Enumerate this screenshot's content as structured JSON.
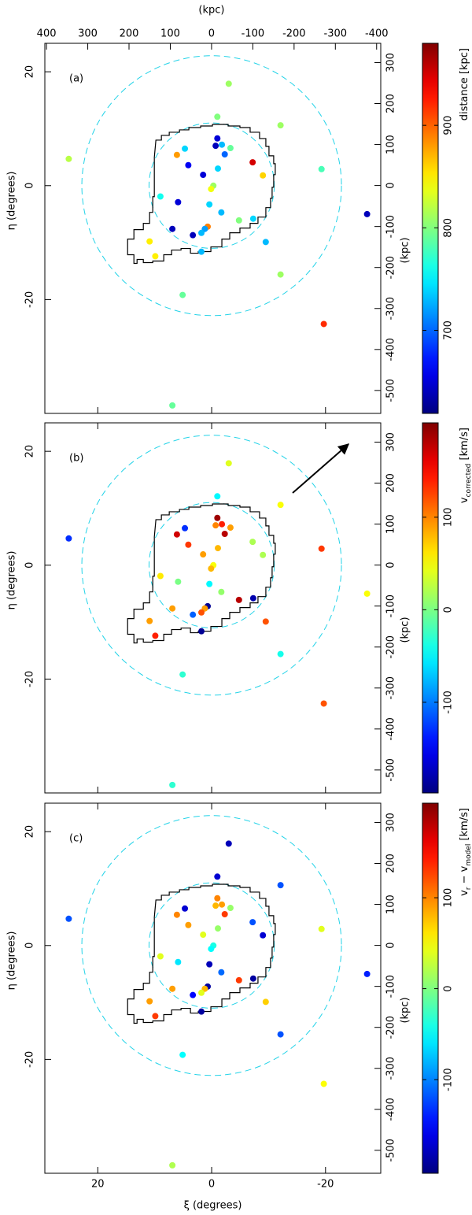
{
  "chart_data": [
    {
      "type": "scatter",
      "label": "(a)",
      "colormap": "jet",
      "xlim": [
        29.3,
        -29.7
      ],
      "xticks": [
        20,
        0,
        -20
      ],
      "ylim": [
        -40,
        25
      ],
      "yticks": [
        20,
        0,
        -20
      ],
      "ylabel": "η (degrees)",
      "x2lim": [
        404,
        -410
      ],
      "x2ticks": [
        400,
        300,
        200,
        100,
        0,
        -100,
        -200,
        -300,
        -400
      ],
      "x2label": "(kpc)",
      "y2lim": [
        -556,
        347
      ],
      "y2ticks": [
        300,
        200,
        100,
        0,
        -100,
        -200,
        -300,
        -400,
        -500
      ],
      "y2label": "(kpc)",
      "clim": [
        619,
        980
      ],
      "cticks": [
        700,
        800,
        900
      ],
      "clabel": [
        {
          "text": "distance [kpc]"
        }
      ],
      "x": [
        -3.0,
        -12.1,
        25.1,
        -19.3,
        -27.3,
        -1.0,
        -1.0,
        -0.7,
        -1.8,
        -3.3,
        4.7,
        6.1,
        -2.3,
        -7.2,
        4.1,
        -1.1,
        1.5,
        -9.0,
        -0.3,
        0.1,
        9.0,
        5.9,
        0.4,
        -1.7,
        -4.8,
        -7.3,
        0.7,
        1.2,
        6.9,
        1.8,
        3.3,
        10.9,
        -9.5,
        1.8,
        9.9,
        -12.1,
        5.1,
        -19.7,
        6.9
      ],
      "y": [
        17.9,
        10.6,
        4.7,
        2.9,
        -5.0,
        12.1,
        8.3,
        7.0,
        7.2,
        6.6,
        6.5,
        5.4,
        5.5,
        4.1,
        3.6,
        3.0,
        1.9,
        1.8,
        0.0,
        -0.6,
        -1.9,
        -2.9,
        -3.3,
        -4.7,
        -6.1,
        -5.8,
        -7.2,
        -7.6,
        -7.6,
        -8.3,
        -8.7,
        -9.8,
        -9.9,
        -11.6,
        -12.4,
        -15.6,
        -19.2,
        -24.3,
        -38.6
      ],
      "values": [
        810,
        810,
        820,
        780,
        640,
        800,
        650,
        640,
        730,
        790,
        740,
        880,
        700,
        950,
        660,
        740,
        650,
        860,
        810,
        840,
        760,
        650,
        740,
        730,
        800,
        740,
        890,
        720,
        640,
        730,
        640,
        850,
        730,
        730,
        850,
        810,
        790,
        920,
        790
      ]
    },
    {
      "type": "scatter",
      "label": "(b)",
      "colormap": "jet",
      "arrow": true,
      "xlim": [
        29.3,
        -29.7
      ],
      "xticks": [
        20,
        0,
        -20
      ],
      "ylim": [
        -40,
        25
      ],
      "yticks": [
        20,
        0,
        -20
      ],
      "ylabel": "η (degrees)",
      "y2lim": [
        -556,
        347
      ],
      "y2ticks": [
        300,
        200,
        100,
        0,
        -100,
        -200,
        -300,
        -400,
        -500
      ],
      "y2label": "(kpc)",
      "clim": [
        -198,
        202
      ],
      "cticks": [
        -100,
        0,
        100
      ],
      "clabel": [
        {
          "text": "v"
        },
        {
          "text": "corrected",
          "sub": true
        },
        {
          "text": " [km/s]"
        }
      ],
      "x": [
        -3.0,
        -12.1,
        25.1,
        -19.3,
        -27.3,
        -1.0,
        -1.0,
        -0.7,
        -1.8,
        -3.3,
        4.7,
        6.1,
        -2.3,
        -7.2,
        4.1,
        -1.1,
        1.5,
        -9.0,
        -0.3,
        0.1,
        9.0,
        5.9,
        0.4,
        -1.7,
        -4.8,
        -7.3,
        0.7,
        1.2,
        6.9,
        1.8,
        3.3,
        10.9,
        -9.5,
        1.8,
        9.9,
        -12.1,
        5.1,
        -19.7,
        6.9
      ],
      "y": [
        17.9,
        10.6,
        4.7,
        2.9,
        -5.0,
        12.1,
        8.3,
        7.0,
        7.2,
        6.6,
        6.5,
        5.4,
        5.5,
        4.1,
        3.6,
        3.0,
        1.9,
        1.8,
        0.0,
        -0.6,
        -1.9,
        -2.9,
        -3.3,
        -4.7,
        -6.1,
        -5.8,
        -7.2,
        -7.6,
        -7.6,
        -8.3,
        -8.7,
        -9.8,
        -9.9,
        -11.6,
        -12.4,
        -15.6,
        -19.2,
        -24.3,
        -38.6
      ],
      "values": [
        40,
        50,
        -130,
        130,
        50,
        -50,
        190,
        100,
        140,
        90,
        -130,
        170,
        180,
        20,
        130,
        80,
        90,
        20,
        50,
        80,
        60,
        0,
        -50,
        10,
        180,
        -180,
        -190,
        90,
        90,
        120,
        -110,
        90,
        120,
        -190,
        140,
        -40,
        -30,
        120,
        -30
      ]
    },
    {
      "type": "scatter",
      "label": "(c)",
      "colormap": "jet",
      "xlim": [
        29.3,
        -29.7
      ],
      "xticks": [
        20,
        0,
        -20
      ],
      "xlabel": "ξ (degrees)",
      "ylim": [
        -40,
        25
      ],
      "yticks": [
        20,
        0,
        -20
      ],
      "ylabel": "η (degrees)",
      "y2lim": [
        -556,
        347
      ],
      "y2ticks": [
        300,
        200,
        100,
        0,
        -100,
        -200,
        -300,
        -400,
        -500
      ],
      "y2label": "(kpc)",
      "clim": [
        -203,
        204
      ],
      "cticks": [
        -100,
        0,
        100
      ],
      "clabel": [
        {
          "text": "v"
        },
        {
          "text": "r",
          "sub": true
        },
        {
          "text": " − v"
        },
        {
          "text": "model",
          "sub": true
        },
        {
          "text": " [km/s]"
        }
      ],
      "x": [
        -3.0,
        -12.1,
        25.1,
        -19.3,
        -27.3,
        -1.0,
        -1.0,
        -0.7,
        -1.8,
        -3.3,
        4.7,
        6.1,
        -2.3,
        -7.2,
        4.1,
        -1.1,
        1.5,
        -9.0,
        -0.3,
        0.1,
        9.0,
        5.9,
        0.4,
        -1.7,
        -4.8,
        -7.3,
        0.7,
        1.2,
        6.9,
        1.8,
        3.3,
        10.9,
        -9.5,
        1.8,
        9.9,
        -12.1,
        5.1,
        -19.7,
        6.9
      ],
      "y": [
        17.9,
        10.6,
        4.7,
        2.9,
        -5.0,
        12.1,
        8.3,
        7.0,
        7.2,
        6.6,
        6.5,
        5.4,
        5.5,
        4.1,
        3.6,
        3.0,
        1.9,
        1.8,
        0.0,
        -0.6,
        -1.9,
        -2.9,
        -3.3,
        -4.7,
        -6.1,
        -5.8,
        -7.2,
        -7.6,
        -7.6,
        -8.3,
        -8.7,
        -9.8,
        -9.9,
        -11.6,
        -12.4,
        -15.6,
        -19.2,
        -24.3,
        -38.6
      ],
      "values": [
        -180,
        -120,
        -120,
        40,
        -140,
        -170,
        100,
        80,
        90,
        10,
        -170,
        100,
        130,
        -120,
        90,
        10,
        40,
        -170,
        -40,
        -50,
        40,
        -60,
        -180,
        -110,
        130,
        -190,
        -190,
        80,
        90,
        40,
        -150,
        90,
        70,
        -190,
        130,
        -120,
        -50,
        50,
        20
      ]
    }
  ]
}
